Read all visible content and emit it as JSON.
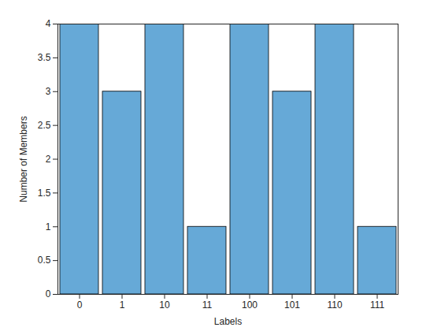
{
  "chart_data": {
    "type": "bar",
    "x_label": "Labels",
    "y_label": "Number of Members",
    "categories": [
      "0",
      "1",
      "10",
      "11",
      "100",
      "101",
      "110",
      "111"
    ],
    "values": [
      4,
      3,
      4,
      1,
      4,
      3,
      4,
      1
    ],
    "color": "#66a9d7",
    "ylim": [
      0,
      4
    ],
    "yticks": [
      0,
      0.5,
      1,
      1.5,
      2,
      2.5,
      3,
      3.5,
      4
    ],
    "grid": false
  }
}
